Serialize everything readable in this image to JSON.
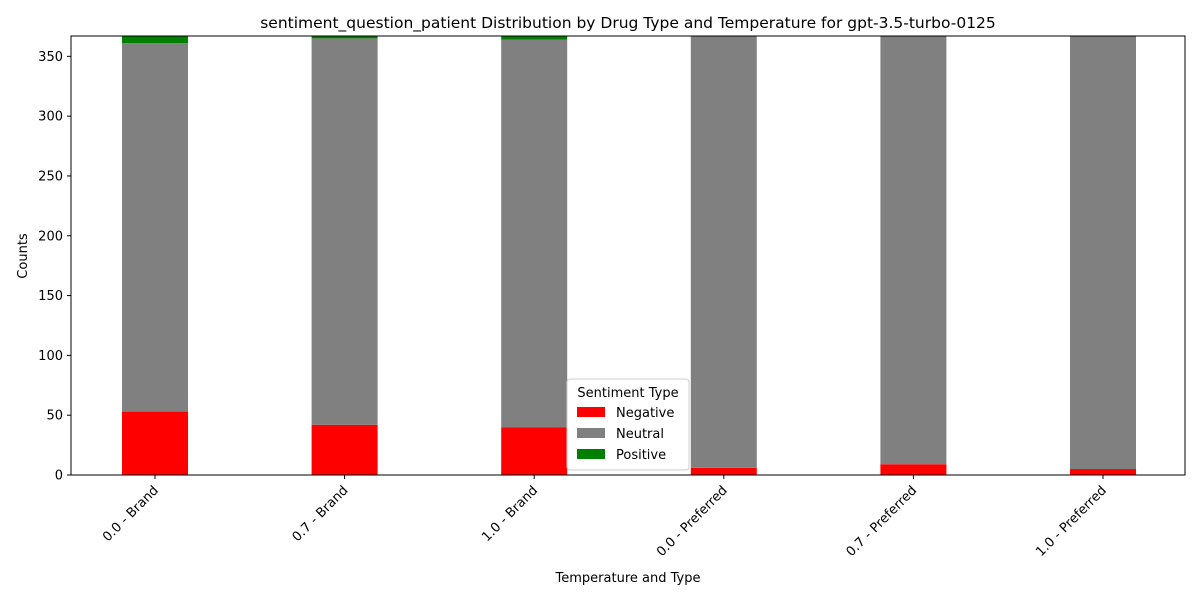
{
  "chart_data": {
    "type": "bar",
    "stacked": true,
    "title": "sentiment_question_patient Distribution by Drug Type and Temperature for gpt-3.5-turbo-0125",
    "xlabel": "Temperature and Type",
    "ylabel": "Counts",
    "ylim": [
      0,
      367
    ],
    "yticks": [
      0,
      50,
      100,
      150,
      200,
      250,
      300,
      350
    ],
    "categories": [
      "0.0 - Brand",
      "0.7 - Brand",
      "1.0 - Brand",
      "0.0 - Preferred",
      "0.7 - Preferred",
      "1.0 - Preferred"
    ],
    "series": [
      {
        "name": "Negative",
        "color": "#ff0000",
        "values": [
          53,
          42,
          40,
          6,
          9,
          5
        ]
      },
      {
        "name": "Neutral",
        "color": "#808080",
        "values": [
          308,
          323,
          324,
          361,
          358,
          362
        ]
      },
      {
        "name": "Positive",
        "color": "#008000",
        "values": [
          6,
          2,
          3,
          0,
          0,
          0
        ]
      }
    ],
    "legend": {
      "title": "Sentiment Type",
      "placement": "lower-center"
    },
    "grid": false
  }
}
